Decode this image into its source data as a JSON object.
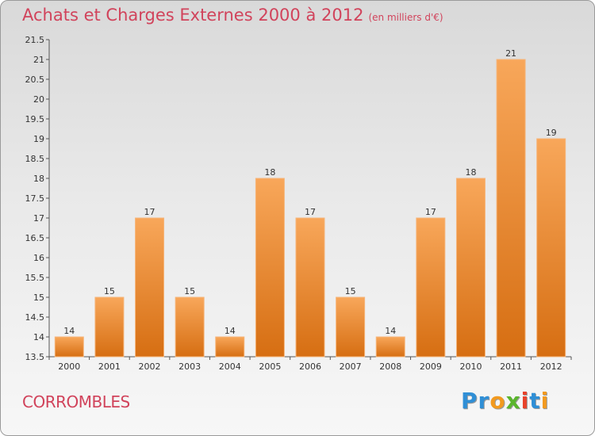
{
  "title": "Achats et Charges Externes 2000 à 2012",
  "unit": "(en milliers d'€)",
  "commune": "CORROMBLES",
  "logo": {
    "letters": [
      "P",
      "r",
      "o",
      "x",
      "i",
      "t",
      "i"
    ],
    "colors": [
      "#2f8fd6",
      "#2f8fd6",
      "#f29a1f",
      "#5ab52d",
      "#e8432b",
      "#2f8fd6",
      "#f29a1f"
    ]
  },
  "chart_data": {
    "type": "bar",
    "categories": [
      "2000",
      "2001",
      "2002",
      "2003",
      "2004",
      "2005",
      "2006",
      "2007",
      "2008",
      "2009",
      "2010",
      "2011",
      "2012"
    ],
    "values": [
      14,
      15,
      17,
      15,
      14,
      18,
      17,
      15,
      14,
      17,
      18,
      21,
      19
    ],
    "data_labels": [
      "14",
      "15",
      "17",
      "15",
      "14",
      "18",
      "17",
      "15",
      "14",
      "17",
      "18",
      "21",
      "19"
    ],
    "ylim": [
      13.5,
      21.5
    ],
    "yticks": [
      "13.5",
      "14",
      "14.5",
      "15",
      "15.5",
      "16",
      "16.5",
      "17",
      "17.5",
      "18",
      "18.5",
      "19",
      "19.5",
      "20",
      "20.5",
      "21",
      "21.5"
    ],
    "ytick_values": [
      13.5,
      14,
      14.5,
      15,
      15.5,
      16,
      16.5,
      17,
      17.5,
      18,
      18.5,
      19,
      19.5,
      20,
      20.5,
      21,
      21.5
    ],
    "grid": false,
    "bar_color": "#f0922e"
  }
}
